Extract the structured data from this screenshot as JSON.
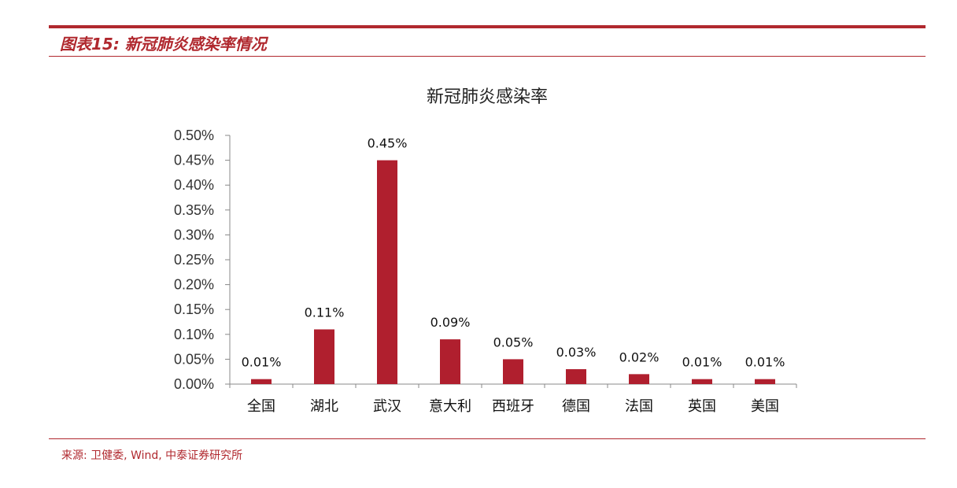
{
  "header": {
    "title": "图表15: 新冠肺炎感染率情况"
  },
  "footer": {
    "source": "来源: 卫健委, Wind, 中泰证券研究所"
  },
  "colors": {
    "accent": "#b0282e",
    "bar": "#b01f2e"
  },
  "chart_data": {
    "type": "bar",
    "title": "新冠肺炎感染率",
    "xlabel": "",
    "ylabel": "",
    "categories": [
      "全国",
      "湖北",
      "武汉",
      "意大利",
      "西班牙",
      "德国",
      "法国",
      "英国",
      "美国"
    ],
    "values": [
      0.0001,
      0.0011,
      0.0045,
      0.0009,
      0.0005,
      0.0003,
      0.0002,
      0.0001,
      0.0001
    ],
    "data_labels": [
      "0.01%",
      "0.11%",
      "0.45%",
      "0.09%",
      "0.05%",
      "0.03%",
      "0.02%",
      "0.01%",
      "0.01%"
    ],
    "ylim": [
      0,
      0.005
    ],
    "yticks": [
      "0.00%",
      "0.05%",
      "0.10%",
      "0.15%",
      "0.20%",
      "0.25%",
      "0.30%",
      "0.35%",
      "0.40%",
      "0.45%",
      "0.50%"
    ],
    "grid": false,
    "legend": "none"
  }
}
